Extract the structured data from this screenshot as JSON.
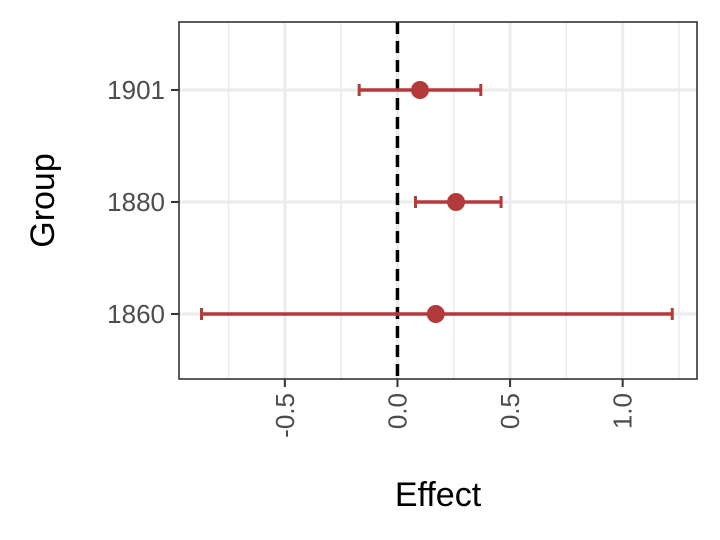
{
  "chart_data": {
    "type": "forest",
    "xlabel": "Effect",
    "ylabel": "Group",
    "xlim": [
      -0.97,
      1.33
    ],
    "x_ticks": [
      -0.5,
      0.0,
      0.5,
      1.0
    ],
    "x_tick_labels": [
      "-0.5",
      "0.0",
      "0.5",
      "1.0"
    ],
    "categories": [
      "1901",
      "1880",
      "1860"
    ],
    "reference_line": 0.0,
    "grid": true,
    "colors": {
      "point": "#B33A3A",
      "errorbar": "#B33A3A",
      "reference": "#000000",
      "grid": "#EBEBEB",
      "panel_border": "#333333"
    },
    "points": [
      {
        "group": "1901",
        "estimate": 0.1,
        "lower": -0.17,
        "upper": 0.37
      },
      {
        "group": "1880",
        "estimate": 0.26,
        "lower": 0.08,
        "upper": 0.46
      },
      {
        "group": "1860",
        "estimate": 0.17,
        "lower": -0.87,
        "upper": 1.22
      }
    ]
  }
}
